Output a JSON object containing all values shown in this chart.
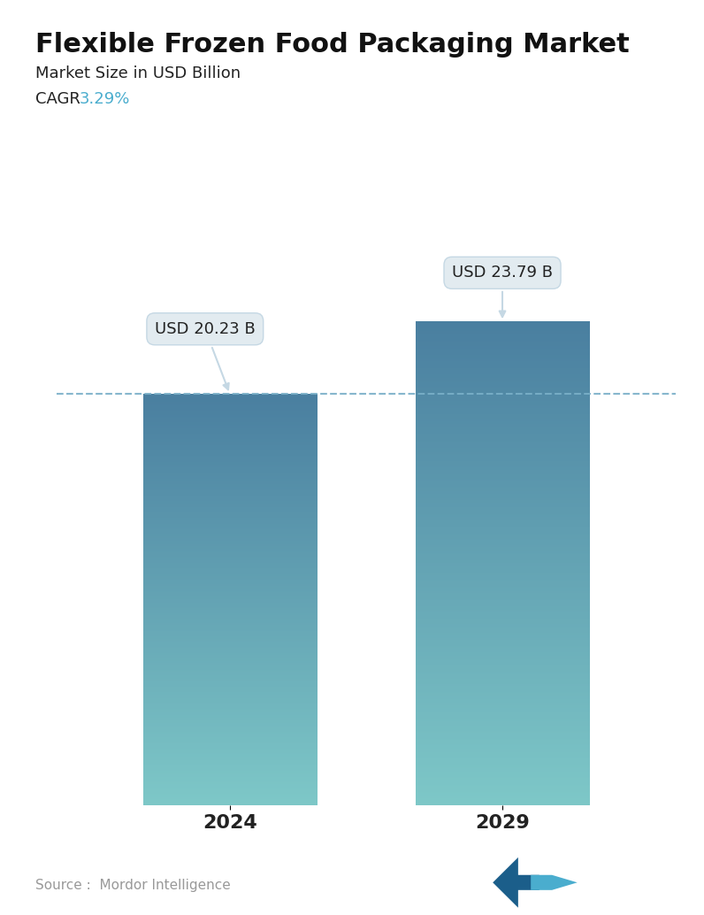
{
  "title": "Flexible Frozen Food Packaging Market",
  "subtitle": "Market Size in USD Billion",
  "cagr_label": "CAGR",
  "cagr_value": "3.29%",
  "cagr_color": "#4AADCE",
  "categories": [
    "2024",
    "2029"
  ],
  "values": [
    20.23,
    23.79
  ],
  "value_labels": [
    "USD 20.23 B",
    "USD 23.79 B"
  ],
  "bar_color_top": "#4A7FA0",
  "bar_color_bottom": "#7EC8C8",
  "dashed_line_color": "#7AAFC8",
  "dashed_line_value": 20.23,
  "source_text": "Source :  Mordor Intelligence",
  "source_color": "#999999",
  "background_color": "#ffffff",
  "title_fontsize": 22,
  "subtitle_fontsize": 13,
  "cagr_fontsize": 13,
  "bar_label_fontsize": 13,
  "tick_fontsize": 16,
  "source_fontsize": 11,
  "ylim": [
    0,
    27
  ],
  "bar_width": 0.28
}
